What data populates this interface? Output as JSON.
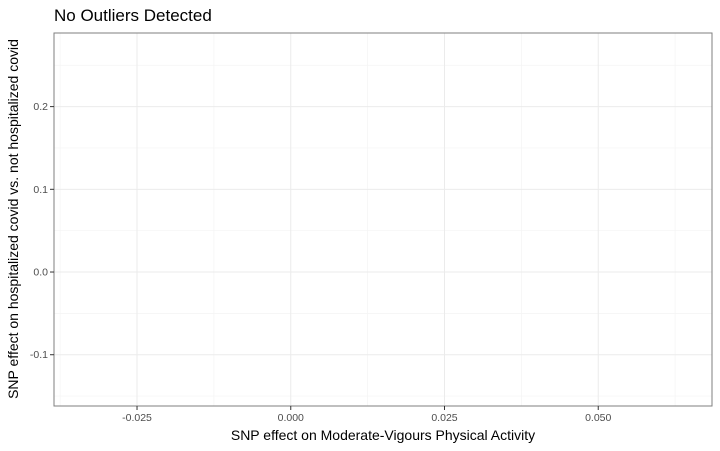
{
  "chart_data": {
    "type": "scatter",
    "title": "No Outliers Detected",
    "xlabel": "SNP effect on Moderate-Vigours Physical Activity",
    "ylabel": "SNP effect on hospitalized covid vs. not hospitalized covid",
    "xlim": [
      -0.0385,
      0.0685
    ],
    "ylim": [
      -0.162,
      0.289
    ],
    "x_ticks": [
      -0.025,
      0.0,
      0.025,
      0.05
    ],
    "x_tick_labels": [
      "-0.025",
      "0.000",
      "0.025",
      "0.050"
    ],
    "y_ticks": [
      -0.1,
      0.0,
      0.1,
      0.2
    ],
    "y_tick_labels": [
      "-0.1",
      "0.0",
      "0.1",
      "0.2"
    ],
    "grid": true,
    "series": []
  }
}
